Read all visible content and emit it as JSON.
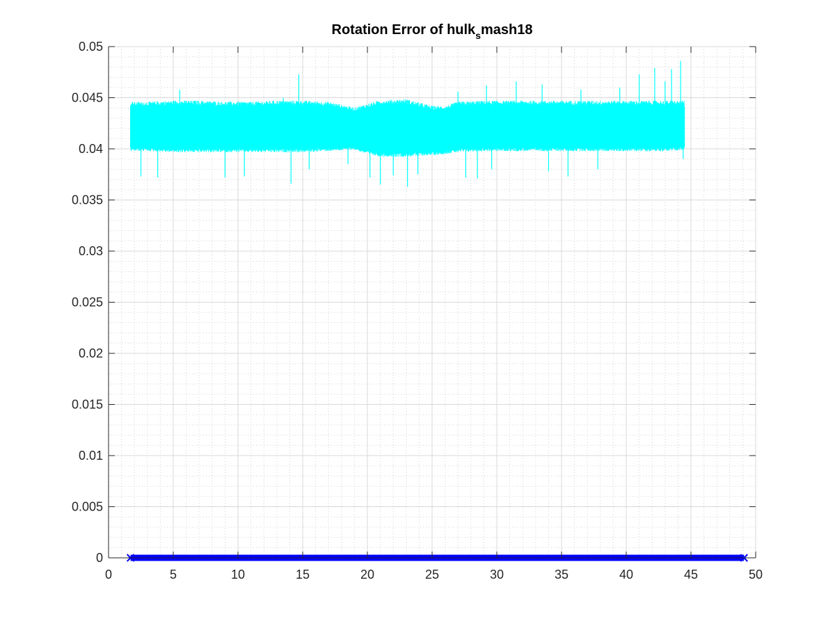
{
  "chart_data": {
    "type": "line",
    "title": {
      "main": "Rotation Error of hulk",
      "subscript": "s",
      "suffix": "mash18"
    },
    "xlabel": "",
    "ylabel": "",
    "xlim": [
      0,
      50
    ],
    "ylim": [
      0,
      0.05
    ],
    "x_ticks": [
      0,
      5,
      10,
      15,
      20,
      25,
      30,
      35,
      40,
      45,
      50
    ],
    "x_tick_labels": [
      "0",
      "5",
      "10",
      "15",
      "20",
      "25",
      "30",
      "35",
      "40",
      "45",
      "50"
    ],
    "y_ticks": [
      0,
      0.005,
      0.01,
      0.015,
      0.02,
      0.025,
      0.03,
      0.035,
      0.04,
      0.045,
      0.05
    ],
    "y_tick_labels": [
      "0",
      "0.005",
      "0.01",
      "0.015",
      "0.02",
      "0.025",
      "0.03",
      "0.035",
      "0.04",
      "0.045",
      "0.05"
    ],
    "grid": "on",
    "minor_grid": "on",
    "legend": "none",
    "series": [
      {
        "color": "#00ffff",
        "style": "dense noisy band",
        "x_range": [
          1.7,
          44.5
        ],
        "band_low": 0.0402,
        "band_high": 0.0443,
        "envelope": {
          "x": [
            1.7,
            3,
            5,
            7,
            9,
            11,
            13,
            15,
            17,
            19,
            20,
            21,
            23,
            25,
            26,
            27,
            29,
            31,
            33,
            35,
            37,
            39,
            41,
            43,
            44.5
          ],
          "low": [
            0.0401,
            0.0401,
            0.04,
            0.04,
            0.04,
            0.04,
            0.04,
            0.04,
            0.0401,
            0.0402,
            0.0398,
            0.0396,
            0.0396,
            0.0397,
            0.0398,
            0.04,
            0.0401,
            0.0401,
            0.0401,
            0.0401,
            0.0401,
            0.0401,
            0.0401,
            0.0401,
            0.0402
          ],
          "high": [
            0.0442,
            0.0442,
            0.0443,
            0.0443,
            0.0442,
            0.0442,
            0.0443,
            0.0443,
            0.0442,
            0.0437,
            0.044,
            0.0443,
            0.0444,
            0.0438,
            0.0438,
            0.0442,
            0.0443,
            0.0443,
            0.0443,
            0.0443,
            0.0443,
            0.0443,
            0.0443,
            0.0443,
            0.0443
          ]
        },
        "spikes": [
          {
            "x": 2.5,
            "y": 0.0373
          },
          {
            "x": 3.8,
            "y": 0.0372
          },
          {
            "x": 5.5,
            "y": 0.0458
          },
          {
            "x": 8.0,
            "y": 0.0445
          },
          {
            "x": 9.0,
            "y": 0.0372
          },
          {
            "x": 10.5,
            "y": 0.0373
          },
          {
            "x": 11.5,
            "y": 0.0445
          },
          {
            "x": 13.5,
            "y": 0.045
          },
          {
            "x": 14.1,
            "y": 0.0366
          },
          {
            "x": 14.7,
            "y": 0.0473
          },
          {
            "x": 15.5,
            "y": 0.038
          },
          {
            "x": 18.5,
            "y": 0.0385
          },
          {
            "x": 20.2,
            "y": 0.0372
          },
          {
            "x": 21.0,
            "y": 0.0365
          },
          {
            "x": 22.0,
            "y": 0.0374
          },
          {
            "x": 23.1,
            "y": 0.0363
          },
          {
            "x": 23.9,
            "y": 0.0375
          },
          {
            "x": 27.0,
            "y": 0.0456
          },
          {
            "x": 27.6,
            "y": 0.0372
          },
          {
            "x": 28.5,
            "y": 0.0371
          },
          {
            "x": 29.2,
            "y": 0.0462
          },
          {
            "x": 29.6,
            "y": 0.038
          },
          {
            "x": 31.5,
            "y": 0.0466
          },
          {
            "x": 33.5,
            "y": 0.0463
          },
          {
            "x": 34.0,
            "y": 0.0378
          },
          {
            "x": 35.5,
            "y": 0.0373
          },
          {
            "x": 36.5,
            "y": 0.0458
          },
          {
            "x": 37.8,
            "y": 0.038
          },
          {
            "x": 39.5,
            "y": 0.046
          },
          {
            "x": 41.0,
            "y": 0.0473
          },
          {
            "x": 42.2,
            "y": 0.0479
          },
          {
            "x": 43.0,
            "y": 0.0466
          },
          {
            "x": 43.5,
            "y": 0.0478
          },
          {
            "x": 44.2,
            "y": 0.0486
          },
          {
            "x": 44.4,
            "y": 0.039
          }
        ]
      },
      {
        "color": "#0000ff",
        "style": "thick line with x markers",
        "x_range": [
          1.7,
          49.1
        ],
        "y_value": 0.0
      }
    ]
  }
}
